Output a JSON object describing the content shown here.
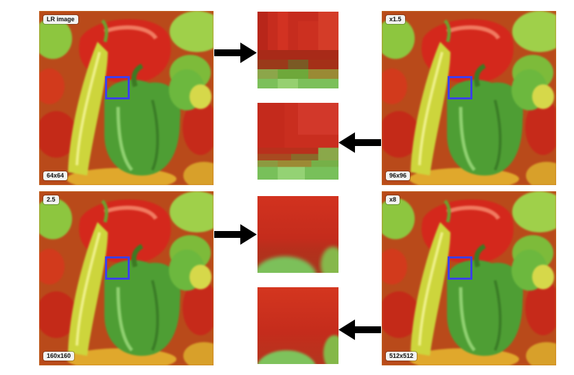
{
  "figure": {
    "panels": [
      {
        "id": "lr",
        "top_label": "LR image",
        "bottom_label": "64x64"
      },
      {
        "id": "x1_5",
        "top_label": "x1.5",
        "bottom_label": "96x96"
      },
      {
        "id": "x2_5",
        "top_label": "2.5",
        "bottom_label": "160x160"
      },
      {
        "id": "x8",
        "top_label": "x8",
        "bottom_label": "512x512"
      }
    ],
    "colors": {
      "roi": "#3b3ff2",
      "arrow": "#000000",
      "red_pepper": "#c8261e",
      "green_pepper": "#5aa83a",
      "yellow_pepper": "#c9d23a"
    }
  }
}
